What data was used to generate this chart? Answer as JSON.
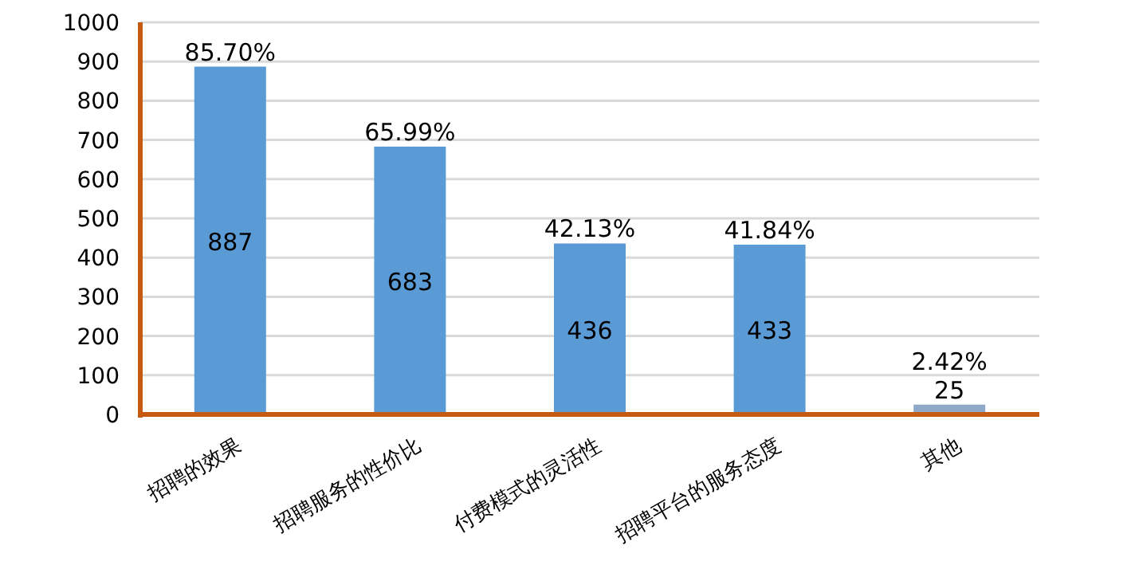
{
  "chart_data": {
    "type": "bar",
    "categories": [
      "招聘的效果",
      "招聘服务的性价比",
      "付费模式的灵活性",
      "招聘平台的服务态度",
      "其他"
    ],
    "values": [
      887,
      683,
      436,
      433,
      25
    ],
    "colors": [
      "#5b9bd5",
      "#5b9bd5",
      "#5b9bd5",
      "#5b9bd5",
      "#8ea9c8"
    ],
    "ylim": [
      0,
      1000
    ],
    "yticks": [
      0,
      100,
      200,
      300,
      400,
      500,
      600,
      700,
      800,
      900,
      1000
    ],
    "grid": "y",
    "data_labels": true,
    "annotations": [
      {
        "text": "85.70%",
        "x": "招聘的效果",
        "y": 887
      },
      {
        "text": "65.99%",
        "x": "招聘服务的性价比",
        "y": 683
      },
      {
        "text": "42.13%",
        "x": "付费模式的灵活性",
        "y": 436
      },
      {
        "text": "41.84%",
        "x": "招聘平台的服务态度",
        "y": 433
      },
      {
        "text": "2.42%",
        "x": "其他",
        "y": 25
      }
    ]
  }
}
